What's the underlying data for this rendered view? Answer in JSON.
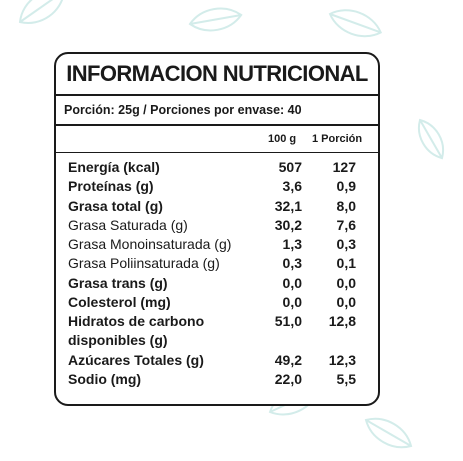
{
  "title": "INFORMACION NUTRICIONAL",
  "portion": "Porción: 25g / Porciones por envase: 40",
  "columns": {
    "per100": "100 g",
    "perPortion": "1 Porción"
  },
  "rows": [
    {
      "name": "Energía (kcal)",
      "per100": "507",
      "perPortion": "127",
      "bold": true
    },
    {
      "name": "Proteínas (g)",
      "per100": "3,6",
      "perPortion": "0,9",
      "bold": true
    },
    {
      "name": "Grasa total (g)",
      "per100": "32,1",
      "perPortion": "8,0",
      "bold": true
    },
    {
      "name": "Grasa Saturada (g)",
      "per100": "30,2",
      "perPortion": "7,6",
      "bold": false
    },
    {
      "name": "Grasa Monoinsaturada (g)",
      "per100": "1,3",
      "perPortion": "0,3",
      "bold": false
    },
    {
      "name": "Grasa Poliinsaturada (g)",
      "per100": "0,3",
      "perPortion": "0,1",
      "bold": false
    },
    {
      "name": "Grasa trans (g)",
      "per100": "0,0",
      "perPortion": "0,0",
      "bold": true
    },
    {
      "name": "Colesterol (mg)",
      "per100": "0,0",
      "perPortion": "0,0",
      "bold": true
    },
    {
      "name": "Hidratos de carbono disponibles (g)",
      "per100": "51,0",
      "perPortion": "12,8",
      "bold": true,
      "tall": true
    },
    {
      "name": "Azúcares Totales (g)",
      "per100": "49,2",
      "perPortion": "12,3",
      "bold": true
    },
    {
      "name": "Sodio (mg)",
      "per100": "22,0",
      "perPortion": "5,5",
      "bold": true
    }
  ],
  "colors": {
    "leaf": "#d3ecea",
    "ink": "#1a1a1a",
    "cursor": "#2a6ad8"
  },
  "icons": [
    "leaf-icon",
    "text-cursor-icon"
  ]
}
